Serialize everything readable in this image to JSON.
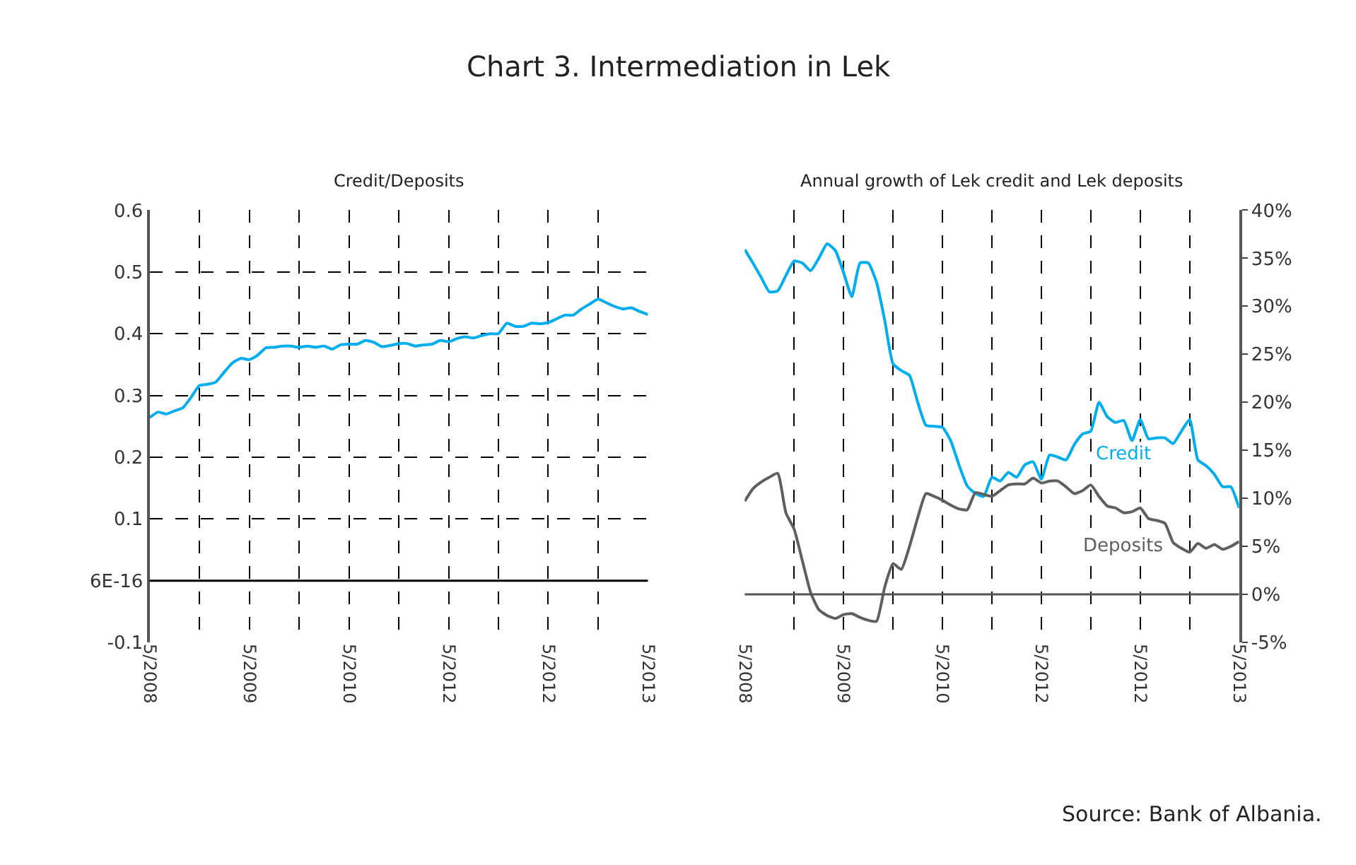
{
  "chart_data": [
    {
      "type": "line",
      "title": "Chart 3. Intermediation in Lek",
      "subtitle": "Credit/Deposits",
      "categories": [
        "5/2008",
        null,
        null,
        null,
        null,
        null,
        null,
        null,
        null,
        null,
        null,
        null,
        "5/2009",
        null,
        null,
        null,
        null,
        null,
        null,
        null,
        null,
        null,
        null,
        null,
        "5/2010",
        null,
        null,
        null,
        null,
        null,
        null,
        null,
        null,
        null,
        null,
        null,
        "5/2012",
        null,
        null,
        null,
        null,
        null,
        null,
        null,
        null,
        null,
        null,
        null,
        "5/2012",
        null,
        null,
        null,
        null,
        null,
        null,
        null,
        null,
        null,
        null,
        null,
        "5/2013"
      ],
      "ylim": [
        -0.1,
        0.6
      ],
      "yticks": [
        -0.1,
        {
          "value": 0,
          "label": "6E-16"
        },
        0.1,
        0.2,
        0.3,
        0.4,
        0.5,
        0.6
      ],
      "grid": true,
      "legend": false,
      "marker": "none",
      "line_style": "solid",
      "ref_lines": [
        {
          "axis": "y",
          "value": 0,
          "color": "#000000"
        }
      ],
      "series": [
        {
          "color": "#00aeef",
          "values": [
            0.264,
            0.273,
            0.27,
            0.275,
            0.28,
            0.297,
            0.316,
            0.318,
            0.322,
            0.338,
            0.353,
            0.36,
            0.358,
            0.365,
            0.377,
            0.378,
            0.38,
            0.38,
            0.378,
            0.38,
            0.378,
            0.38,
            0.375,
            0.382,
            0.383,
            0.383,
            0.389,
            0.386,
            0.379,
            0.381,
            0.384,
            0.384,
            0.38,
            0.382,
            0.383,
            0.389,
            0.387,
            0.392,
            0.395,
            0.393,
            0.397,
            0.4,
            0.4,
            0.417,
            0.412,
            0.412,
            0.417,
            0.416,
            0.418,
            0.424,
            0.43,
            0.43,
            0.44,
            0.448,
            0.456,
            0.45,
            0.444,
            0.44,
            0.442,
            0.436,
            0.431
          ]
        }
      ]
    },
    {
      "type": "line",
      "title": "Annual growth of Lek credit and Lek deposits",
      "categories": [
        "5/2008",
        null,
        null,
        null,
        null,
        null,
        null,
        null,
        null,
        null,
        null,
        null,
        "5/2009",
        null,
        null,
        null,
        null,
        null,
        null,
        null,
        null,
        null,
        null,
        null,
        "5/2010",
        null,
        null,
        null,
        null,
        null,
        null,
        null,
        null,
        null,
        null,
        null,
        "5/2012",
        null,
        null,
        null,
        null,
        null,
        null,
        null,
        null,
        null,
        null,
        null,
        "5/2012",
        null,
        null,
        null,
        null,
        null,
        null,
        null,
        null,
        null,
        null,
        null,
        "5/2013"
      ],
      "y2lim": [
        -5,
        40
      ],
      "y2ticks": [
        {
          "value": -5,
          "label": "-5%"
        },
        {
          "value": 0,
          "label": "0%"
        },
        {
          "value": 5,
          "label": "5%"
        },
        {
          "value": 10,
          "label": "10%"
        },
        {
          "value": 15,
          "label": "15%"
        },
        {
          "value": 20,
          "label": "20%"
        },
        {
          "value": 25,
          "label": "25%"
        },
        {
          "value": 30,
          "label": "30%"
        },
        {
          "value": 35,
          "label": "35%"
        },
        {
          "value": 40,
          "label": "40%"
        }
      ],
      "grid": "x",
      "legend": false,
      "marker": "none",
      "line_style": "solid",
      "ref_lines": [
        {
          "axis": "y2",
          "value": 0,
          "color": "#555555"
        }
      ],
      "annotations": [
        "Source: Bank of Albania."
      ],
      "series": [
        {
          "name": "Credit",
          "axis": "y2",
          "color": "#00aeef",
          "values": [
            35.9,
            34.5,
            33,
            31.5,
            31.6,
            33.2,
            34.7,
            34.5,
            33.7,
            35,
            36.5,
            35.8,
            33.5,
            31,
            34.5,
            34.5,
            32.5,
            28.5,
            24,
            23.3,
            22.8,
            20,
            17.6,
            17.5,
            17.4,
            16,
            13.5,
            11.3,
            10.5,
            10.2,
            12.2,
            11.8,
            12.7,
            12.2,
            13.5,
            13.8,
            12,
            14.5,
            14.3,
            14,
            15.6,
            16.7,
            17,
            20,
            18.5,
            17.9,
            18.1,
            16,
            18.2,
            16.2,
            16.3,
            16.3,
            15.7,
            17,
            18.2,
            14,
            13.4,
            12.5,
            11.2,
            11.2,
            9
          ]
        },
        {
          "name": "Deposits",
          "axis": "y2",
          "color": "#5f5f5f",
          "values": [
            9.7,
            11,
            11.7,
            12.2,
            12.6,
            8.5,
            6.8,
            3.5,
            0.2,
            -1.6,
            -2.2,
            -2.5,
            -2.1,
            -2,
            -2.4,
            -2.7,
            -2.8,
            0.8,
            3.2,
            2.6,
            5,
            8,
            10.5,
            10.2,
            9.8,
            9.3,
            8.9,
            8.8,
            10.6,
            10.4,
            10.2,
            10.8,
            11.4,
            11.5,
            11.5,
            12.1,
            11.6,
            11.8,
            11.8,
            11.2,
            10.5,
            10.8,
            11.4,
            10.2,
            9.2,
            9,
            8.5,
            8.6,
            9,
            7.9,
            7.7,
            7.4,
            5.4,
            4.8,
            4.4,
            5.3,
            4.8,
            5.2,
            4.7,
            5,
            5.5
          ]
        }
      ]
    }
  ]
}
